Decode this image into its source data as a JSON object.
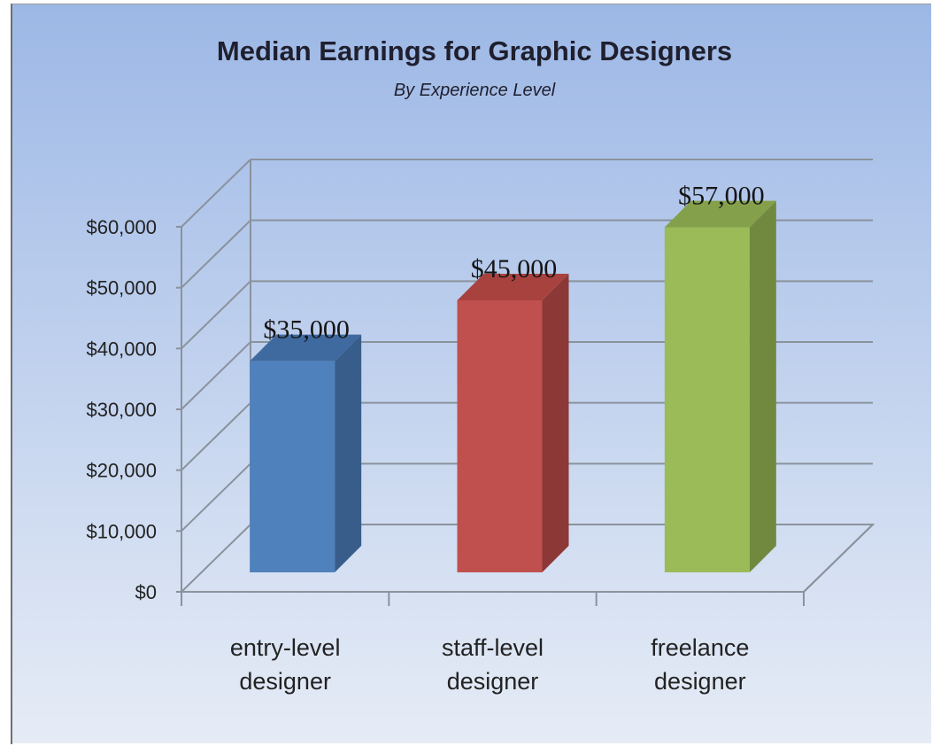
{
  "chart_data": {
    "type": "bar",
    "title": "Median Earnings for Graphic Designers",
    "subtitle": "By Experience Level",
    "categories": [
      [
        "entry-level",
        "designer"
      ],
      [
        "staff-level",
        "designer"
      ],
      [
        "freelance",
        "designer"
      ]
    ],
    "values": [
      35000,
      45000,
      57000
    ],
    "data_labels": [
      "$35,000",
      "$45,000",
      "$57,000"
    ],
    "bar_colors": [
      "#4f81bd",
      "#c0504d",
      "#9bbb59"
    ],
    "bar_side_colors": [
      "#385d8a",
      "#8c3836",
      "#71893f"
    ],
    "bar_top_colors": [
      "#3f6aa0",
      "#a8423f",
      "#84a04a"
    ],
    "ylim": [
      0,
      60000
    ],
    "yticks": [
      0,
      10000,
      20000,
      30000,
      40000,
      50000,
      60000
    ],
    "ytick_labels": [
      "$0",
      "$10,000",
      "$20,000",
      "$30,000",
      "$40,000",
      "$50,000",
      "$60,000"
    ],
    "xlabel": "",
    "ylabel": "",
    "grid": true,
    "legend": "none",
    "style": "3d-column",
    "background_gradient": [
      "#9db8e6",
      "#e6ecf6"
    ]
  }
}
